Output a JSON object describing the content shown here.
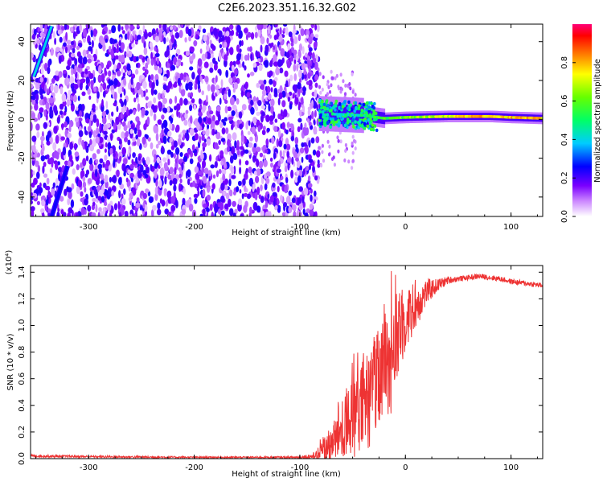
{
  "title": "C2E6.2023.351.16.32.G02",
  "colorbar": {
    "label": "Normalized spectral amplitude",
    "ticks": [
      "0.0",
      "0.2",
      "0.4",
      "0.6",
      "0.8"
    ],
    "tick_values": [
      0.0,
      0.2,
      0.4,
      0.6,
      0.8
    ],
    "range": [
      0,
      1
    ]
  },
  "chart_data": [
    {
      "type": "heatmap",
      "xlabel": "Height of straight line (km)",
      "ylabel": "Frequency (Hz)",
      "xlim": [
        -355,
        130
      ],
      "ylim": [
        -50,
        49
      ],
      "xticks": [
        -300,
        -200,
        -100,
        0,
        100
      ],
      "xtick_labels": [
        "-300",
        "-200",
        "-100",
        "0",
        "100"
      ],
      "yticks": [
        -40,
        -20,
        0,
        20,
        40
      ],
      "ytick_labels": [
        "-40",
        "-20",
        "0",
        "20",
        "40"
      ],
      "noise_region_x": [
        -355,
        -82
      ],
      "noise_amplitude_typical": 0.12,
      "signal_track": {
        "x_start": -82,
        "x_end": 130,
        "frequency_hz": [
          {
            "x": -82,
            "f": 3
          },
          {
            "x": -60,
            "f": 2.5
          },
          {
            "x": -40,
            "f": 2
          },
          {
            "x": -20,
            "f": 0.5
          },
          {
            "x": 0,
            "f": 1
          },
          {
            "x": 40,
            "f": 1.5
          },
          {
            "x": 80,
            "f": 1.5
          },
          {
            "x": 100,
            "f": 1
          },
          {
            "x": 130,
            "f": 0.5
          }
        ],
        "peak_amplitude": 0.85
      },
      "aliased_lines": [
        {
          "x": [
            -352,
            -335
          ],
          "y": [
            22,
            48
          ],
          "amplitude": 0.4
        },
        {
          "x": [
            -335,
            -320
          ],
          "y": [
            -50,
            -24
          ],
          "amplitude": 0.25
        }
      ]
    },
    {
      "type": "line",
      "xlabel": "Height of straight line (km)",
      "ylabel": "SNR (10 * v/v)",
      "y_scale_label": "(x10⁴)",
      "xlim": [
        -355,
        130
      ],
      "ylim": [
        0,
        1.45
      ],
      "xticks": [
        -300,
        -200,
        -100,
        0,
        100
      ],
      "xtick_labels": [
        "-300",
        "-200",
        "-100",
        "0",
        "100"
      ],
      "yticks": [
        0.0,
        0.2,
        0.4,
        0.6,
        0.8,
        1.0,
        1.2,
        1.4
      ],
      "ytick_labels": [
        "0.0",
        "0.2",
        "0.4",
        "0.6",
        "0.8",
        "1.0",
        "1.2",
        "1.4"
      ],
      "color": "#ee3333",
      "series": [
        {
          "x": [
            -355,
            -300,
            -250,
            -200,
            -150,
            -100,
            -85,
            -70,
            -60,
            -50,
            -40,
            -30,
            -20,
            -15,
            -10,
            -5,
            0,
            10,
            20,
            30,
            40,
            50,
            60,
            70,
            80,
            90,
            100,
            110,
            120,
            130
          ],
          "y": [
            0.02,
            0.015,
            0.012,
            0.01,
            0.01,
            0.01,
            0.02,
            0.12,
            0.2,
            0.3,
            0.4,
            0.5,
            0.65,
            0.75,
            0.85,
            0.95,
            1.05,
            1.15,
            1.25,
            1.3,
            1.34,
            1.35,
            1.36,
            1.37,
            1.36,
            1.35,
            1.33,
            1.32,
            1.31,
            1.3
          ],
          "noise": [
            0.01,
            0.008,
            0.008,
            0.006,
            0.006,
            0.008,
            0.03,
            0.15,
            0.25,
            0.3,
            0.35,
            0.4,
            0.4,
            0.45,
            0.4,
            0.3,
            0.25,
            0.18,
            0.1,
            0.05,
            0.03,
            0.02,
            0.02,
            0.02,
            0.02,
            0.02,
            0.02,
            0.02,
            0.02,
            0.02
          ]
        }
      ]
    }
  ]
}
